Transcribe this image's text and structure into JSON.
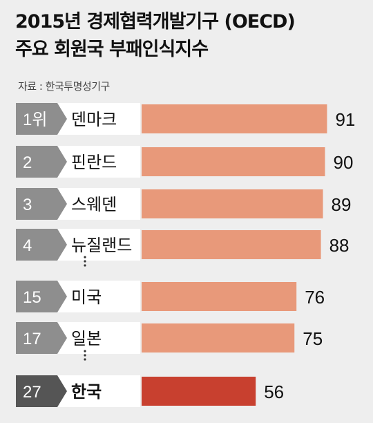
{
  "title_line1": "2015년 경제협력개발기구 (OECD)",
  "title_line2": "주요 회원국 부패인식지수",
  "source": "자료 : 한국투명성기구",
  "colors": {
    "bar": "#e8997a",
    "bar_highlight": "#c8402f",
    "tag": "#8e8e8e",
    "tag_highlight": "#555555",
    "name_box": "#ffffff"
  },
  "chart_data": {
    "type": "bar",
    "orientation": "horizontal",
    "title": "2015년 경제협력개발기구 (OECD) 주요 회원국 부패인식지수",
    "categories": [
      "덴마크",
      "핀란드",
      "스웨덴",
      "뉴질랜드",
      "미국",
      "일본",
      "한국"
    ],
    "ranks": [
      "1위",
      "2",
      "3",
      "4",
      "15",
      "17",
      "27"
    ],
    "values": [
      91,
      90,
      89,
      88,
      76,
      75,
      56
    ],
    "highlight": "한국",
    "gap_after_index": [
      3,
      5
    ]
  }
}
